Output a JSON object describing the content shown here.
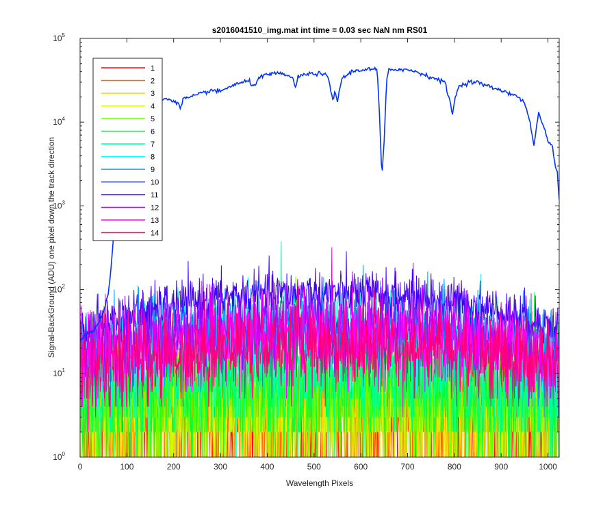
{
  "chart_data": {
    "type": "line",
    "title": "s2016041510_img.mat int time = 0.03 sec  NaN nm RS01",
    "xlabel": "Wavelength Pixels",
    "ylabel": "Signal-BackGround (ADU) one pixel down the track direction",
    "xlim": [
      0,
      1024
    ],
    "ylim": [
      1,
      100000
    ],
    "yscale": "log",
    "grid": false,
    "legend_position": "top-left",
    "x_ticks": [
      0,
      100,
      200,
      300,
      400,
      500,
      600,
      700,
      800,
      900,
      1000
    ],
    "y_ticks": [
      {
        "value": 1,
        "base": "10",
        "exp": "0"
      },
      {
        "value": 10,
        "base": "10",
        "exp": "1"
      },
      {
        "value": 100,
        "base": "10",
        "exp": "2"
      },
      {
        "value": 1000,
        "base": "10",
        "exp": "3"
      },
      {
        "value": 10000,
        "base": "10",
        "exp": "4"
      },
      {
        "value": 100000,
        "base": "10",
        "exp": "5"
      }
    ],
    "series": [
      {
        "name": "1",
        "color": "#ff0000",
        "level": [
          3,
          3,
          3
        ],
        "spread": 1.2
      },
      {
        "name": "2",
        "color": "#ff6600",
        "level": [
          3,
          3,
          3
        ],
        "spread": 1.2
      },
      {
        "name": "3",
        "color": "#ffcc00",
        "level": [
          3,
          3,
          3
        ],
        "spread": 1.2
      },
      {
        "name": "4",
        "color": "#ccff00",
        "level": [
          3,
          4,
          3
        ],
        "spread": 1.2
      },
      {
        "name": "5",
        "color": "#66ff00",
        "level": [
          4,
          6,
          4
        ],
        "spread": 1.1
      },
      {
        "name": "6",
        "color": "#00ff33",
        "level": [
          5,
          8,
          5
        ],
        "spread": 1.1
      },
      {
        "name": "7",
        "color": "#00ff99",
        "level": [
          7,
          12,
          7
        ],
        "spread": 1.0
      },
      {
        "name": "8",
        "color": "#00ffff",
        "level": [
          12,
          30,
          15
        ],
        "spread": 0.8
      },
      {
        "name": "9",
        "color": "#0099ff",
        "level": [
          15,
          40,
          20
        ],
        "spread": 0.7
      },
      {
        "name": "10",
        "color": "#0033ff",
        "main": true,
        "points": [
          [
            0,
            25
          ],
          [
            10,
            28
          ],
          [
            20,
            30
          ],
          [
            30,
            33
          ],
          [
            40,
            40
          ],
          [
            50,
            55
          ],
          [
            55,
            70
          ],
          [
            60,
            90
          ],
          [
            65,
            150
          ],
          [
            70,
            350
          ],
          [
            75,
            800
          ],
          [
            80,
            2000
          ],
          [
            85,
            5000
          ],
          [
            90,
            10000
          ],
          [
            95,
            14000
          ],
          [
            100,
            16000
          ],
          [
            120,
            17000
          ],
          [
            150,
            18000
          ],
          [
            180,
            19000
          ],
          [
            200,
            18000
          ],
          [
            210,
            17000
          ],
          [
            215,
            14000
          ],
          [
            220,
            19000
          ],
          [
            240,
            20000
          ],
          [
            260,
            22000
          ],
          [
            280,
            24000
          ],
          [
            300,
            23000
          ],
          [
            310,
            25000
          ],
          [
            330,
            28000
          ],
          [
            350,
            30000
          ],
          [
            360,
            31000
          ],
          [
            370,
            27000
          ],
          [
            375,
            29000
          ],
          [
            380,
            33000
          ],
          [
            400,
            37000
          ],
          [
            420,
            38000
          ],
          [
            440,
            37000
          ],
          [
            455,
            33000
          ],
          [
            460,
            26000
          ],
          [
            465,
            34000
          ],
          [
            480,
            37000
          ],
          [
            500,
            38000
          ],
          [
            520,
            38000
          ],
          [
            530,
            34000
          ],
          [
            540,
            18000
          ],
          [
            545,
            24000
          ],
          [
            550,
            17000
          ],
          [
            555,
            26000
          ],
          [
            560,
            33000
          ],
          [
            580,
            40000
          ],
          [
            600,
            42000
          ],
          [
            620,
            43000
          ],
          [
            635,
            42000
          ],
          [
            640,
            12000
          ],
          [
            645,
            2200
          ],
          [
            650,
            6000
          ],
          [
            655,
            30000
          ],
          [
            660,
            42000
          ],
          [
            680,
            43000
          ],
          [
            700,
            42000
          ],
          [
            720,
            40000
          ],
          [
            740,
            36000
          ],
          [
            760,
            33000
          ],
          [
            780,
            30000
          ],
          [
            785,
            22000
          ],
          [
            790,
            19000
          ],
          [
            795,
            12000
          ],
          [
            800,
            18000
          ],
          [
            810,
            27000
          ],
          [
            830,
            30000
          ],
          [
            850,
            30000
          ],
          [
            870,
            27000
          ],
          [
            890,
            25000
          ],
          [
            910,
            23000
          ],
          [
            930,
            21000
          ],
          [
            950,
            17000
          ],
          [
            960,
            11000
          ],
          [
            965,
            7500
          ],
          [
            970,
            5500
          ],
          [
            975,
            8000
          ],
          [
            980,
            13000
          ],
          [
            990,
            9000
          ],
          [
            1000,
            6000
          ],
          [
            1010,
            5000
          ],
          [
            1015,
            3000
          ],
          [
            1020,
            2500
          ],
          [
            1024,
            1200
          ]
        ]
      },
      {
        "name": "11",
        "color": "#4400ff",
        "level": [
          30,
          90,
          40
        ],
        "spread": 0.4
      },
      {
        "name": "12",
        "color": "#aa00ff",
        "level": [
          15,
          35,
          20
        ],
        "spread": 0.7
      },
      {
        "name": "13",
        "color": "#ff00ff",
        "level": [
          12,
          28,
          16
        ],
        "spread": 0.7
      },
      {
        "name": "14",
        "color": "#ff0077",
        "level": [
          10,
          22,
          12
        ],
        "spread": 0.8
      }
    ]
  }
}
